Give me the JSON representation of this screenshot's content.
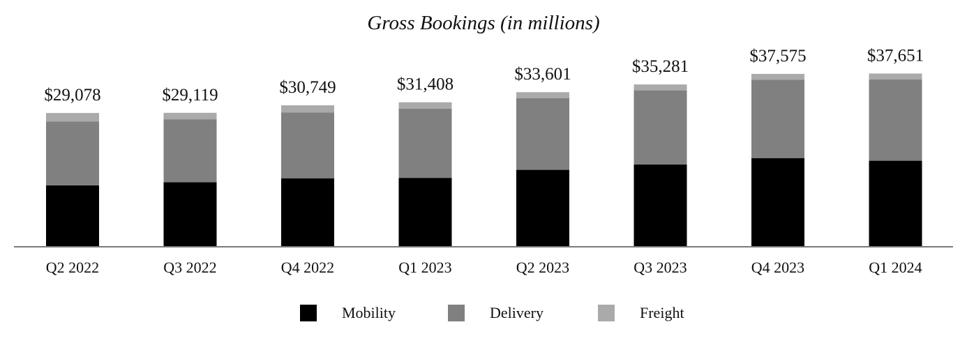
{
  "chart_data": {
    "type": "bar",
    "stacked": true,
    "title": "Gross Bookings (in millions)",
    "xlabel": "",
    "ylabel": "",
    "ylim": [
      0,
      40000
    ],
    "grid": false,
    "legend_position": "bottom-center",
    "categories": [
      "Q2 2022",
      "Q3 2022",
      "Q4 2022",
      "Q1 2023",
      "Q2 2023",
      "Q3 2023",
      "Q4 2023",
      "Q1 2024"
    ],
    "totals": [
      29078,
      29119,
      30749,
      31408,
      33601,
      35281,
      37575,
      37651
    ],
    "total_labels": [
      "$29,078",
      "$29,119",
      "$30,749",
      "$31,408",
      "$33,601",
      "$35,281",
      "$37,575",
      "$37,651"
    ],
    "series": [
      {
        "name": "Mobility",
        "color": "#000000",
        "values": [
          13364,
          14028,
          14894,
          14980,
          16728,
          17903,
          19285,
          18702
        ]
      },
      {
        "name": "Delivery",
        "color": "#808080",
        "values": [
          13876,
          13684,
          14315,
          15026,
          15595,
          16094,
          17011,
          17698
        ]
      },
      {
        "name": "Freight",
        "color": "#aaaaaa",
        "values": [
          1838,
          1407,
          1540,
          1402,
          1278,
          1284,
          1279,
          1251
        ]
      }
    ]
  }
}
